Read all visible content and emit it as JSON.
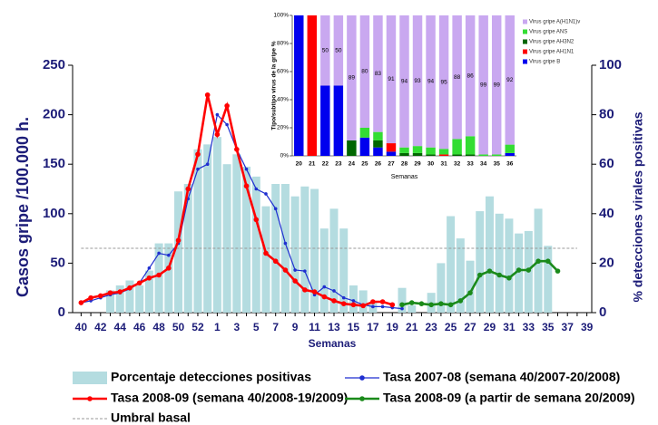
{
  "chart_data": [
    {
      "type": "combo",
      "categories": [
        "40",
        null,
        "42",
        null,
        "44",
        null,
        "46",
        null,
        "48",
        null,
        "50",
        null,
        "52",
        null,
        "1",
        null,
        "3",
        null,
        "5",
        null,
        "7",
        null,
        "9",
        null,
        "11",
        null,
        "13",
        null,
        "15",
        null,
        "17",
        null,
        "19",
        null,
        "21",
        null,
        "23",
        null,
        "25",
        null,
        "27",
        null,
        "29",
        null,
        "31",
        null,
        "33",
        null,
        "35",
        null,
        "37",
        null,
        "39"
      ],
      "xlabel": "Semanas",
      "ylabel": "Casos gripe /100.000 h.",
      "y2label": "% detecciones virales positivas",
      "ylim": [
        0,
        250
      ],
      "yticks": [
        0,
        50,
        100,
        150,
        200,
        250
      ],
      "y2lim": [
        0,
        100
      ],
      "y2ticks": [
        0,
        20,
        40,
        60,
        80,
        100
      ],
      "series": [
        {
          "name": "Porcentaje detecciones positivas",
          "type": "bar",
          "axis": "y2",
          "color": "#b4dce0",
          "values": [
            null,
            null,
            null,
            9,
            11,
            13,
            11,
            17,
            28,
            28,
            49,
            52,
            66,
            68,
            71,
            60,
            64,
            59,
            55,
            43,
            53,
            58,
            47,
            51,
            50,
            34,
            42,
            34,
            11,
            9,
            4,
            null,
            null,
            10,
            3,
            null,
            8,
            20,
            39,
            30,
            21,
            41,
            47,
            40,
            38,
            32,
            33,
            42,
            27,
            null,
            null,
            null,
            null
          ]
        },
        {
          "name": "Tasa 2007-08 (semana 40/2007-20/2008)",
          "type": "line",
          "axis": "y",
          "color": "#1f2fd0",
          "values": [
            10,
            12,
            15,
            18,
            20,
            24,
            30,
            45,
            60,
            58,
            70,
            115,
            145,
            150,
            200,
            190,
            165,
            145,
            125,
            120,
            105,
            70,
            43,
            42,
            18,
            26,
            22,
            15,
            12,
            8,
            6,
            6,
            5,
            4,
            null,
            null,
            null,
            null,
            null,
            null,
            null,
            null,
            null,
            null,
            null,
            null,
            null,
            null,
            null,
            null,
            null,
            null,
            null
          ]
        },
        {
          "name": "Tasa 2008-09 (semana 40/2008-19/2009)",
          "type": "line",
          "axis": "y",
          "color": "#ff0000",
          "values": [
            10,
            15,
            17,
            20,
            21,
            25,
            30,
            35,
            38,
            45,
            73,
            125,
            160,
            220,
            180,
            209,
            165,
            128,
            94,
            60,
            52,
            43,
            32,
            23,
            21,
            16,
            12,
            9,
            8,
            7,
            11,
            11,
            8,
            null,
            null,
            null,
            null,
            null,
            null,
            null,
            null,
            null,
            null,
            null,
            null,
            null,
            null,
            null,
            null,
            null,
            null,
            null,
            null
          ]
        },
        {
          "name": "Tasa 2008-09 (a partir de semana 20/2009)",
          "type": "line",
          "axis": "y",
          "color": "#1a8a1a",
          "values": [
            null,
            null,
            null,
            null,
            null,
            null,
            null,
            null,
            null,
            null,
            null,
            null,
            null,
            null,
            null,
            null,
            null,
            null,
            null,
            null,
            null,
            null,
            null,
            null,
            null,
            null,
            null,
            null,
            null,
            null,
            null,
            null,
            null,
            8,
            10,
            9,
            8,
            9,
            8,
            12,
            20,
            38,
            42,
            38,
            35,
            43,
            43,
            52,
            52,
            42,
            null,
            null,
            null
          ]
        }
      ],
      "threshold": {
        "name": "Umbral basal",
        "value": 65,
        "color": "#999999"
      }
    },
    {
      "type": "stacked_bar",
      "categories": [
        "20",
        "21",
        "22",
        "23",
        "24",
        "25",
        "26",
        "27",
        "28",
        "29",
        "30",
        "31",
        "32",
        "33",
        "34",
        "35",
        "36"
      ],
      "xlabel": "Semanas",
      "ylabel": "Tipo/subtipo virus de la gripe %",
      "ylim": [
        0,
        100
      ],
      "yticks": [
        {
          "value": 0,
          "label": "0%"
        },
        {
          "value": 20,
          "label": "20%"
        },
        {
          "value": 40,
          "label": "40%"
        },
        {
          "value": 60,
          "label": "60%"
        },
        {
          "value": 80,
          "label": "80%"
        },
        {
          "value": 100,
          "label": "100%"
        }
      ],
      "series": [
        {
          "name": "Virus gripe B",
          "color": "#0000ee",
          "values": [
            100,
            null,
            50,
            50,
            null,
            13,
            6,
            3,
            null,
            null,
            null,
            null,
            null,
            null,
            null,
            null,
            2
          ]
        },
        {
          "name": "Virus gripe AH1N1",
          "color": "#ff0000",
          "values": [
            null,
            100,
            null,
            null,
            null,
            null,
            null,
            6,
            null,
            null,
            null,
            1,
            null,
            null,
            null,
            null,
            null
          ]
        },
        {
          "name": "Virus gripe AH3N2",
          "color": "#006600",
          "values": [
            null,
            null,
            null,
            null,
            11,
            null,
            5,
            null,
            2,
            2,
            1,
            null,
            1,
            1,
            null,
            null,
            null
          ]
        },
        {
          "name": "Virus gripe ANS",
          "color": "#33dd33",
          "values": [
            null,
            null,
            null,
            null,
            null,
            7,
            6,
            null,
            4,
            5,
            5,
            4,
            11,
            13,
            1,
            1,
            6
          ]
        },
        {
          "name": "Virus gripe A(H1N1)v",
          "color": "#c9a8f0",
          "show_values": true,
          "values": [
            null,
            null,
            50,
            50,
            89,
            80,
            83,
            91,
            94,
            93,
            94,
            95,
            88,
            86,
            99,
            99,
            92
          ]
        }
      ]
    }
  ]
}
